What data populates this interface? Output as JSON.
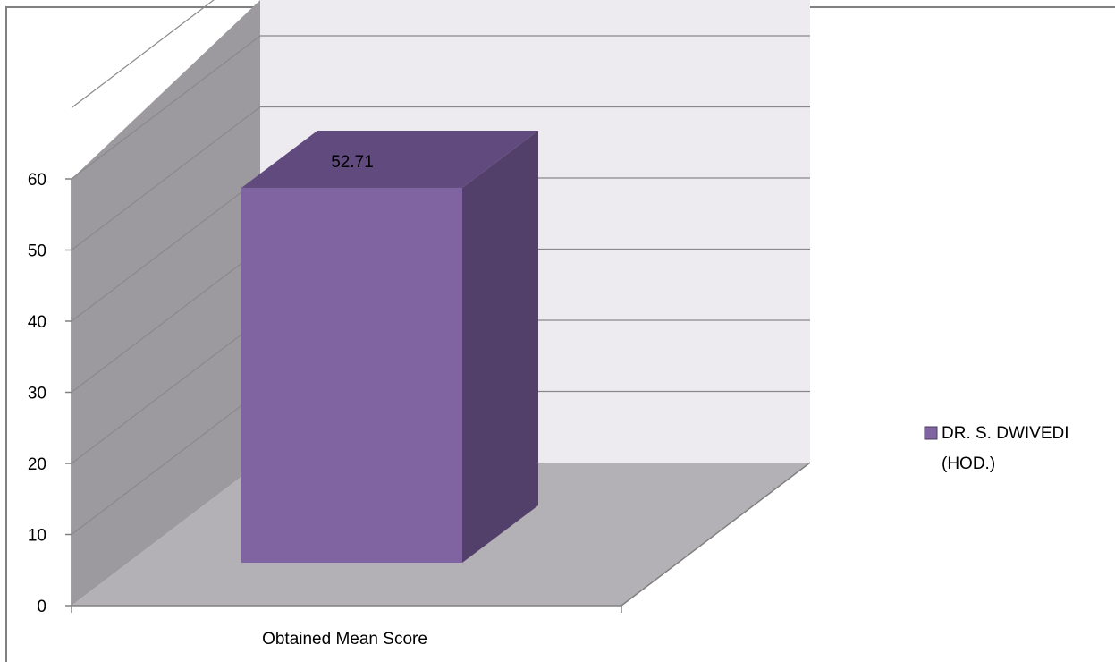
{
  "chart_data": {
    "type": "bar",
    "style": "3d-column",
    "title": "",
    "xlabel": "",
    "ylabel": "",
    "categories": [
      "Obtained Mean Score"
    ],
    "series": [
      {
        "name": "DR. S. DWIVEDI (HOD.)",
        "name_lines": [
          "DR. S. DWIVEDI",
          "(HOD.)"
        ],
        "values": [
          52.71
        ],
        "color": "#8064A2"
      }
    ],
    "data_labels": [
      "52.71"
    ],
    "ylim": [
      0,
      60
    ],
    "yticks": [
      0,
      10,
      20,
      30,
      40,
      50,
      60
    ],
    "grid": true,
    "legend_position": "right"
  },
  "colors": {
    "bar_front": "#8064A2",
    "bar_top": "#614B7E",
    "bar_side": "#523F6A",
    "back_wall": "#EDEBF0",
    "side_wall": "#9C9A9E",
    "floor": "#B3B1B5",
    "gridline": "#8A888C",
    "frame": "#808080"
  }
}
